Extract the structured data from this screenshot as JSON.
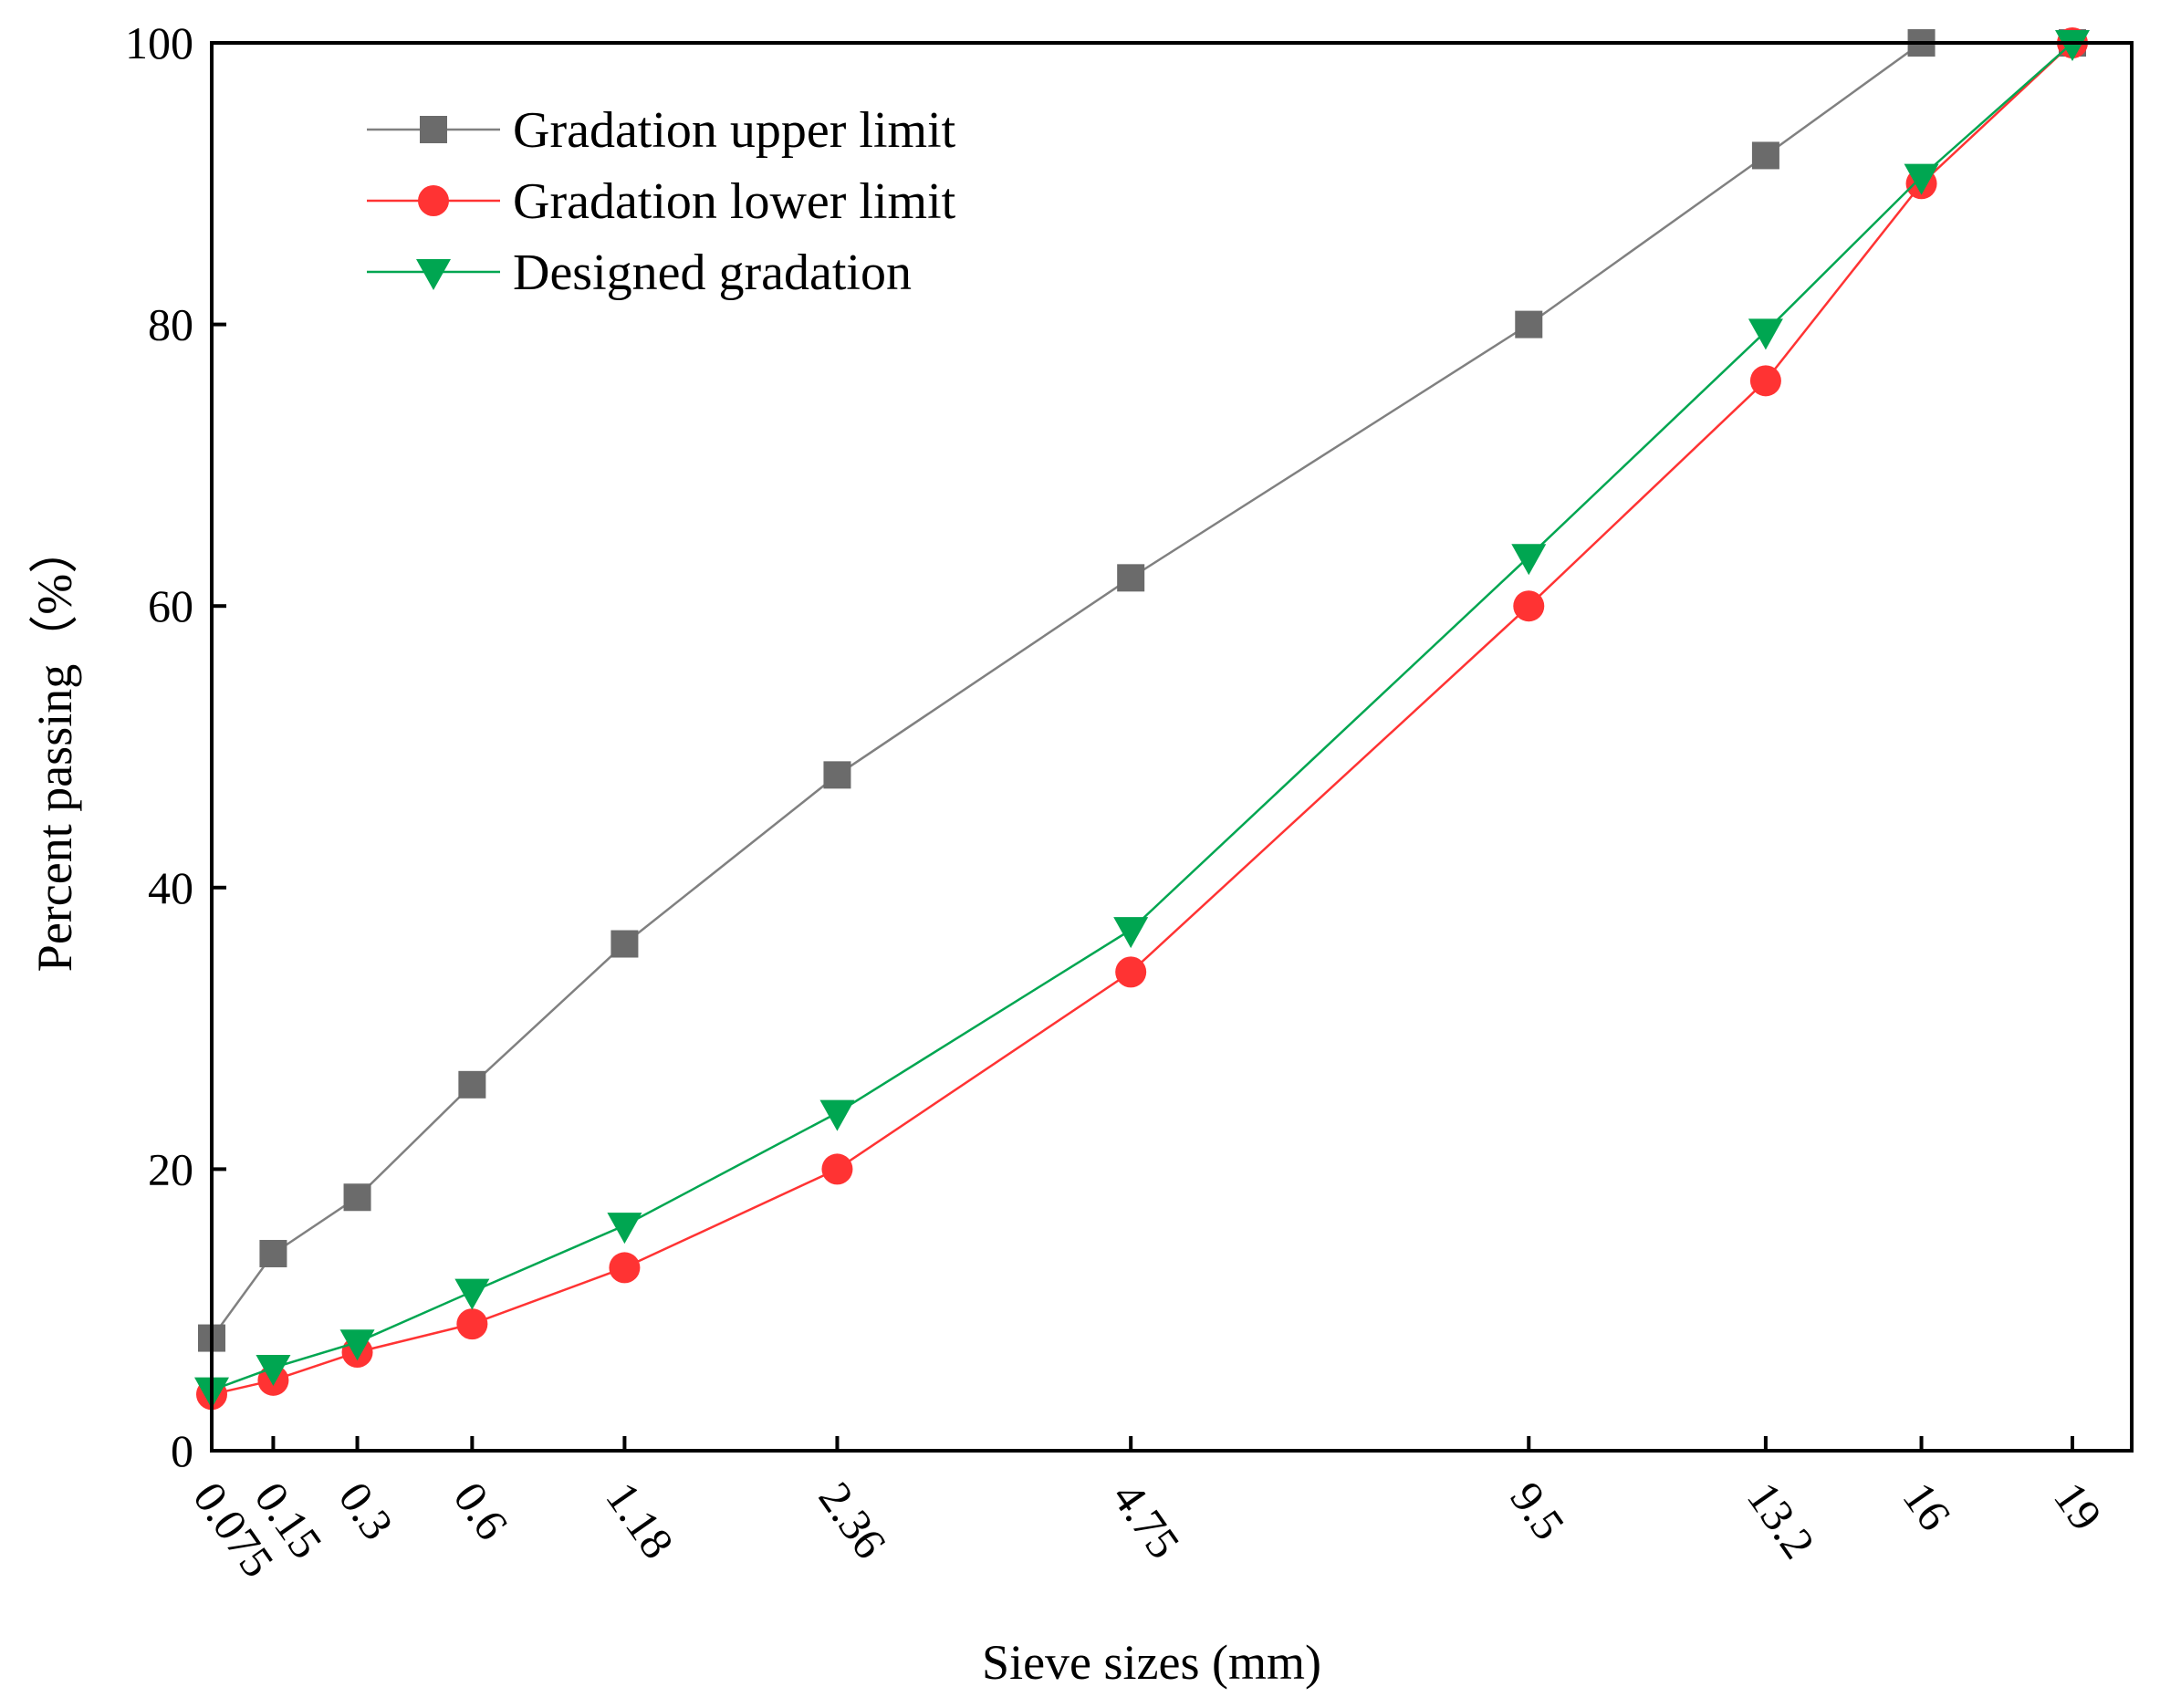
{
  "chart_data": {
    "type": "line",
    "title": "",
    "xlabel": "Sieve sizes (mm)",
    "ylabel": "Percent passing（%）",
    "ylim": [
      0,
      100
    ],
    "yticks": [
      0,
      20,
      40,
      60,
      80,
      100
    ],
    "x_scale": "power-0.45",
    "categories": [
      "0.075",
      "0.15",
      "0.3",
      "0.6",
      "1.18",
      "2.36",
      "4.75",
      "9.5",
      "13.2",
      "16",
      "19"
    ],
    "x": [
      0.075,
      0.15,
      0.3,
      0.6,
      1.18,
      2.36,
      4.75,
      9.5,
      13.2,
      16,
      19
    ],
    "legend_position": "top-left",
    "series": [
      {
        "name": "Gradation upper limit",
        "color": "#6b6b6b",
        "line_color": "#808080",
        "marker": "square",
        "values": [
          8,
          14,
          18,
          26,
          36,
          48,
          62,
          80,
          92,
          100,
          100
        ]
      },
      {
        "name": "Gradation lower limit",
        "color": "#ff3333",
        "line_color": "#ff3333",
        "marker": "circle",
        "values": [
          4,
          5,
          7,
          9,
          13,
          20,
          34,
          60,
          76,
          90,
          100
        ]
      },
      {
        "name": "Designed gradation",
        "color": "#00a651",
        "line_color": "#00a651",
        "marker": "triangle-down",
        "values": [
          4.3,
          5.9,
          7.7,
          11.3,
          16,
          24,
          37,
          63.5,
          79.5,
          90.5,
          100
        ]
      }
    ]
  }
}
